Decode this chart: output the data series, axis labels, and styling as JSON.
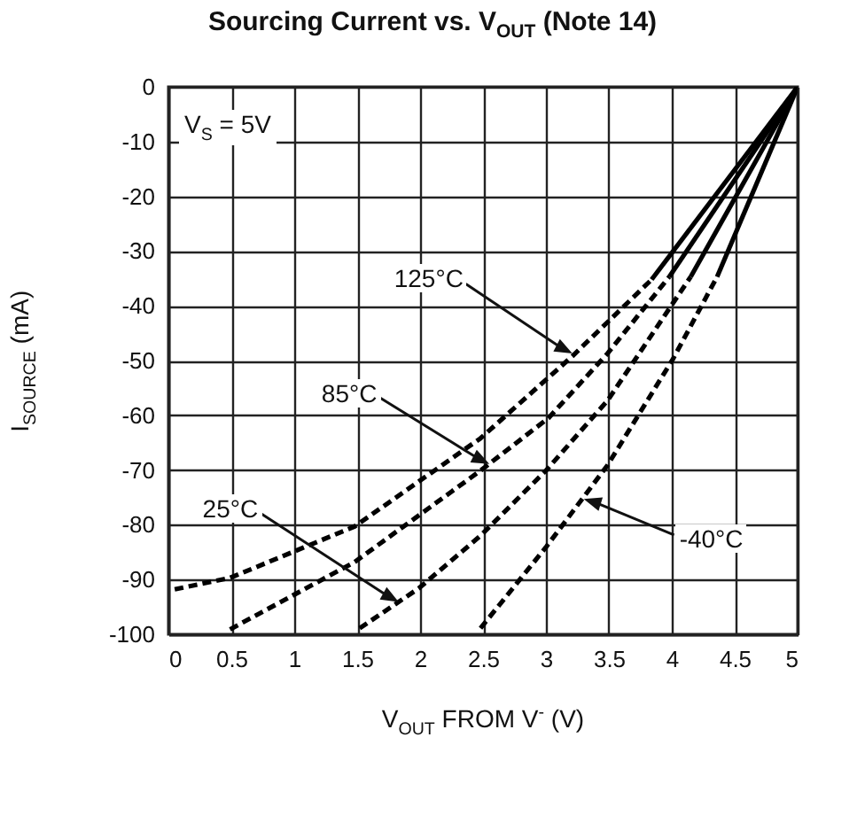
{
  "chart_data": {
    "type": "line",
    "title": "Sourcing Current vs. V$_{OUT}$ (Note 14)",
    "xlabel": "V$_{OUT}$ FROM V$^{-}$ (V)",
    "ylabel": "I$_{SOURCE}$ (mA)",
    "xlim": [
      0,
      5
    ],
    "xticks": [
      0,
      0.5,
      1,
      1.5,
      2,
      2.5,
      3,
      3.5,
      4,
      4.5,
      5
    ],
    "ylim": [
      -100,
      0
    ],
    "yticks": [
      0,
      -10,
      -20,
      -30,
      -40,
      -50,
      -60,
      -70,
      -80,
      -90,
      -100
    ],
    "grid": true,
    "marker": "none",
    "series": [
      {
        "color": "#000000",
        "line_style": "dashed",
        "x": [
          0.05,
          0.49,
          1.48,
          2.48,
          3.21,
          3.84
        ],
        "values": [
          -91.8,
          -89.7,
          -80.3,
          -64.2,
          -49.2,
          -35.2
        ]
      },
      {
        "color": "#000000",
        "line_style": "solid",
        "x": [
          3.84,
          5
        ],
        "values": [
          -35.2,
          0
        ]
      },
      {
        "color": "#000000",
        "line_style": "dashed",
        "x": [
          0.49,
          1.48,
          2.48,
          3.02,
          3.49,
          3.98
        ],
        "values": [
          -99.1,
          -86.8,
          -70.1,
          -60.5,
          -48.7,
          -34.7
        ]
      },
      {
        "color": "#000000",
        "line_style": "solid",
        "x": [
          3.98,
          5
        ],
        "values": [
          -34.7,
          0
        ]
      },
      {
        "color": "#000000",
        "line_style": "dashed",
        "x": [
          1.52,
          1.99,
          2.48,
          3.0,
          3.49,
          4.15
        ],
        "values": [
          -98.9,
          -91.6,
          -82.0,
          -70.1,
          -57.3,
          -34.7
        ]
      },
      {
        "color": "#000000",
        "line_style": "solid",
        "x": [
          4.15,
          5
        ],
        "values": [
          -34.7,
          0
        ]
      },
      {
        "color": "#000000",
        "line_style": "dashed",
        "x": [
          2.48,
          3.0,
          3.49,
          4.01,
          4.36
        ],
        "values": [
          -98.9,
          -84.1,
          -69.1,
          -49.7,
          -34.7
        ]
      },
      {
        "color": "#000000",
        "line_style": "solid",
        "x": [
          4.36,
          5
        ],
        "values": [
          -34.7,
          0
        ]
      }
    ],
    "annotations": [
      "V$_{S}$ = 5V",
      {
        "text": "125°C",
        "x": 3.21,
        "y": -48.7
      },
      {
        "text": "85°C",
        "x": 2.55,
        "y": -68.9
      },
      {
        "text": "25°C",
        "x": 1.83,
        "y": -94.1
      },
      {
        "text": "-40°C",
        "x": 3.3,
        "y": -75.3
      }
    ]
  }
}
